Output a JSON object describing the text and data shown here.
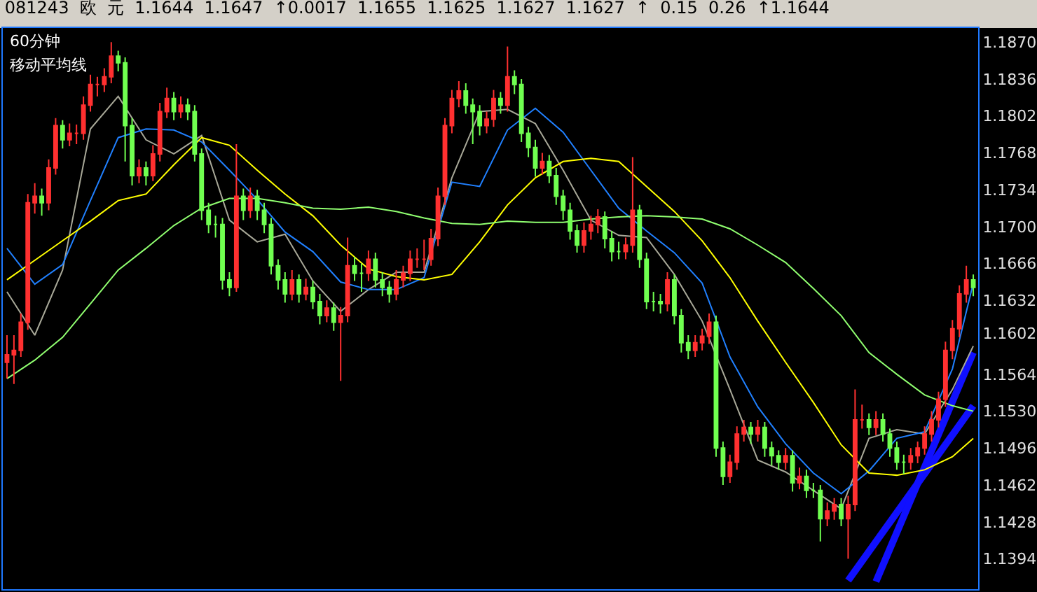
{
  "chart_data": {
    "type": "candlestick",
    "title": "081243  欧  元  1.1644  1.1647  ↑0.0017  1.1655  1.1625  1.1627  1.1627  ↑  0.15  0.26  ↑1.1644",
    "subtitle": "60分钟",
    "annotations": [
      "移动平均线"
    ],
    "categories": [
      null,
      null,
      null,
      null,
      null,
      null,
      null,
      null,
      null,
      null,
      null,
      null,
      null,
      null,
      null,
      null,
      null,
      null,
      null,
      null,
      null,
      null,
      null,
      null,
      null,
      null,
      null,
      null,
      null,
      null,
      null,
      null,
      null,
      null,
      null,
      null,
      null,
      null,
      null,
      null,
      null,
      null,
      null,
      null,
      null,
      null,
      null,
      null,
      null,
      null,
      null,
      null,
      null,
      null,
      null,
      null,
      null,
      null,
      null,
      null,
      null,
      null,
      null,
      null,
      null,
      null,
      null,
      null,
      null,
      null,
      null,
      null,
      null,
      null,
      null,
      null,
      null,
      null,
      null,
      null,
      null,
      null,
      null,
      null,
      null,
      null,
      null,
      null,
      null,
      null,
      null,
      null,
      null,
      null,
      null,
      null,
      null,
      null,
      null,
      null,
      null,
      null,
      null,
      null,
      null,
      null,
      null,
      null,
      null,
      null,
      null,
      null,
      null,
      null,
      null,
      null,
      null,
      null,
      null,
      null,
      null,
      null,
      null,
      null,
      null,
      null,
      null,
      null,
      null,
      null,
      null,
      null,
      null,
      null,
      null,
      null,
      null,
      null,
      null,
      null
    ],
    "ohlc": [
      [
        1.1575,
        1.16,
        1.156,
        1.1582
      ],
      [
        1.1582,
        1.16,
        1.1555,
        1.1586
      ],
      [
        1.1586,
        1.162,
        1.158,
        1.1612
      ],
      [
        1.1612,
        1.173,
        1.1605,
        1.1722
      ],
      [
        1.1722,
        1.174,
        1.1712,
        1.1728
      ],
      [
        1.1728,
        1.1735,
        1.171,
        1.1722
      ],
      [
        1.1722,
        1.1762,
        1.1715,
        1.1754
      ],
      [
        1.1754,
        1.18,
        1.1748,
        1.1793
      ],
      [
        1.1793,
        1.1798,
        1.1772,
        1.178
      ],
      [
        1.178,
        1.1795,
        1.1774,
        1.1786
      ],
      [
        1.1786,
        1.1794,
        1.1776,
        1.1786
      ],
      [
        1.1786,
        1.182,
        1.178,
        1.1812
      ],
      [
        1.1812,
        1.184,
        1.1806,
        1.1831
      ],
      [
        1.1831,
        1.1838,
        1.182,
        1.1831
      ],
      [
        1.1831,
        1.1846,
        1.1824,
        1.1838
      ],
      [
        1.1838,
        1.187,
        1.1832,
        1.1857
      ],
      [
        1.1857,
        1.1862,
        1.1843,
        1.1851
      ],
      [
        1.1851,
        1.1856,
        1.176,
        1.1793
      ],
      [
        1.1793,
        1.18,
        1.1738,
        1.1747
      ],
      [
        1.1747,
        1.1762,
        1.174,
        1.1754
      ],
      [
        1.1754,
        1.176,
        1.1738,
        1.1747
      ],
      [
        1.1747,
        1.1775,
        1.1742,
        1.1767
      ],
      [
        1.1767,
        1.1814,
        1.176,
        1.1806
      ],
      [
        1.1806,
        1.1828,
        1.18,
        1.1818
      ],
      [
        1.1818,
        1.1824,
        1.1798,
        1.1806
      ],
      [
        1.1806,
        1.182,
        1.18,
        1.1812
      ],
      [
        1.1812,
        1.1818,
        1.1798,
        1.1806
      ],
      [
        1.1806,
        1.1812,
        1.176,
        1.1767
      ],
      [
        1.1767,
        1.1772,
        1.1706,
        1.1715
      ],
      [
        1.1715,
        1.1722,
        1.1694,
        1.1702
      ],
      [
        1.1702,
        1.171,
        1.169,
        1.1702
      ],
      [
        1.1702,
        1.1708,
        1.1642,
        1.1651
      ],
      [
        1.1651,
        1.1658,
        1.1636,
        1.1644
      ],
      [
        1.1644,
        1.1776,
        1.164,
        1.1728
      ],
      [
        1.1728,
        1.1735,
        1.1706,
        1.1715
      ],
      [
        1.1715,
        1.1736,
        1.1708,
        1.1728
      ],
      [
        1.1728,
        1.1734,
        1.1706,
        1.1715
      ],
      [
        1.1715,
        1.1722,
        1.1694,
        1.1702
      ],
      [
        1.1702,
        1.1708,
        1.1656,
        1.1664
      ],
      [
        1.1664,
        1.167,
        1.1642,
        1.1651
      ],
      [
        1.1651,
        1.1658,
        1.163,
        1.1638
      ],
      [
        1.1638,
        1.166,
        1.1632,
        1.1651
      ],
      [
        1.1651,
        1.1656,
        1.163,
        1.1638
      ],
      [
        1.1638,
        1.1652,
        1.1632,
        1.1644
      ],
      [
        1.1644,
        1.165,
        1.1624,
        1.1631
      ],
      [
        1.1631,
        1.1638,
        1.161,
        1.1618
      ],
      [
        1.1618,
        1.1632,
        1.1612,
        1.1625
      ],
      [
        1.1625,
        1.163,
        1.1604,
        1.1612
      ],
      [
        1.1612,
        1.1626,
        1.1558,
        1.1618
      ],
      [
        1.1618,
        1.169,
        1.1612,
        1.1664
      ],
      [
        1.1664,
        1.1672,
        1.165,
        1.1657
      ],
      [
        1.1657,
        1.1666,
        1.164,
        1.1657
      ],
      [
        1.1657,
        1.1678,
        1.165,
        1.167
      ],
      [
        1.167,
        1.1676,
        1.1644,
        1.1651
      ],
      [
        1.1651,
        1.1658,
        1.1636,
        1.1644
      ],
      [
        1.1644,
        1.165,
        1.163,
        1.1638
      ],
      [
        1.1638,
        1.166,
        1.1632,
        1.1651
      ],
      [
        1.1651,
        1.1664,
        1.1644,
        1.1657
      ],
      [
        1.1657,
        1.1678,
        1.165,
        1.167
      ],
      [
        1.167,
        1.168,
        1.1662,
        1.167
      ],
      [
        1.167,
        1.1688,
        1.166,
        1.167
      ],
      [
        1.167,
        1.1698,
        1.1664,
        1.1689
      ],
      [
        1.1689,
        1.1736,
        1.1682,
        1.1728
      ],
      [
        1.1728,
        1.18,
        1.172,
        1.1793
      ],
      [
        1.1793,
        1.1826,
        1.1786,
        1.1818
      ],
      [
        1.1818,
        1.1834,
        1.181,
        1.1825
      ],
      [
        1.1825,
        1.1832,
        1.1804,
        1.1812
      ],
      [
        1.1812,
        1.1818,
        1.1776,
        1.1806
      ],
      [
        1.1806,
        1.1812,
        1.1784,
        1.1793
      ],
      [
        1.1793,
        1.1806,
        1.1786,
        1.1799
      ],
      [
        1.1799,
        1.1826,
        1.1792,
        1.1818
      ],
      [
        1.1818,
        1.1824,
        1.1804,
        1.1812
      ],
      [
        1.1812,
        1.1866,
        1.1806,
        1.1838
      ],
      [
        1.1838,
        1.1844,
        1.1822,
        1.1831
      ],
      [
        1.1831,
        1.1836,
        1.1778,
        1.1786
      ],
      [
        1.1786,
        1.1792,
        1.1764,
        1.1773
      ],
      [
        1.1773,
        1.178,
        1.1746,
        1.1754
      ],
      [
        1.1754,
        1.1768,
        1.1748,
        1.176
      ],
      [
        1.176,
        1.1766,
        1.174,
        1.1747
      ],
      [
        1.1747,
        1.1754,
        1.172,
        1.1728
      ],
      [
        1.1728,
        1.1734,
        1.1706,
        1.1715
      ],
      [
        1.1715,
        1.1722,
        1.1688,
        1.1696
      ],
      [
        1.1696,
        1.1702,
        1.1676,
        1.1683
      ],
      [
        1.1683,
        1.1704,
        1.1676,
        1.1696
      ],
      [
        1.1696,
        1.171,
        1.1688,
        1.1702
      ],
      [
        1.1702,
        1.1716,
        1.1694,
        1.1709
      ],
      [
        1.1709,
        1.1714,
        1.168,
        1.1689
      ],
      [
        1.1689,
        1.1696,
        1.1668,
        1.1677
      ],
      [
        1.1677,
        1.1686,
        1.167,
        1.1677
      ],
      [
        1.1677,
        1.169,
        1.167,
        1.1683
      ],
      [
        1.1683,
        1.1764,
        1.1676,
        1.1715
      ],
      [
        1.1715,
        1.172,
        1.1662,
        1.167
      ],
      [
        1.167,
        1.1676,
        1.1624,
        1.1631
      ],
      [
        1.1631,
        1.164,
        1.1622,
        1.1631
      ],
      [
        1.1631,
        1.1638,
        1.162,
        1.1629
      ],
      [
        1.1629,
        1.1658,
        1.1622,
        1.1651
      ],
      [
        1.1651,
        1.1656,
        1.161,
        1.1618
      ],
      [
        1.1618,
        1.1624,
        1.1584,
        1.1593
      ],
      [
        1.1593,
        1.16,
        1.1578,
        1.1586
      ],
      [
        1.1586,
        1.16,
        1.158,
        1.1593
      ],
      [
        1.1593,
        1.1606,
        1.1586,
        1.1599
      ],
      [
        1.1599,
        1.162,
        1.1592,
        1.1612
      ],
      [
        1.1612,
        1.1618,
        1.1488,
        1.1496
      ],
      [
        1.1496,
        1.1502,
        1.1462,
        1.147
      ],
      [
        1.147,
        1.149,
        1.1464,
        1.1483
      ],
      [
        1.1483,
        1.1516,
        1.1476,
        1.1509
      ],
      [
        1.1509,
        1.1522,
        1.1502,
        1.1515
      ],
      [
        1.1515,
        1.152,
        1.15,
        1.1509
      ],
      [
        1.1509,
        1.1522,
        1.1502,
        1.1515
      ],
      [
        1.1515,
        1.152,
        1.1488,
        1.1496
      ],
      [
        1.1496,
        1.1502,
        1.148,
        1.1489
      ],
      [
        1.1489,
        1.1494,
        1.1476,
        1.1483
      ],
      [
        1.1483,
        1.1496,
        1.1476,
        1.1489
      ],
      [
        1.1489,
        1.1494,
        1.1456,
        1.1464
      ],
      [
        1.1464,
        1.1478,
        1.1458,
        1.147
      ],
      [
        1.147,
        1.1476,
        1.145,
        1.1457
      ],
      [
        1.1457,
        1.1464,
        1.145,
        1.1457
      ],
      [
        1.1457,
        1.1462,
        1.141,
        1.1431
      ],
      [
        1.1431,
        1.1446,
        1.1424,
        1.1438
      ],
      [
        1.1438,
        1.145,
        1.143,
        1.1444
      ],
      [
        1.1444,
        1.145,
        1.1424,
        1.1431
      ],
      [
        1.1431,
        1.1452,
        1.1394,
        1.1444
      ],
      [
        1.1444,
        1.155,
        1.1438,
        1.1522
      ],
      [
        1.1522,
        1.1536,
        1.1514,
        1.1522
      ],
      [
        1.1522,
        1.1528,
        1.1508,
        1.1515
      ],
      [
        1.1515,
        1.153,
        1.1508,
        1.1522
      ],
      [
        1.1522,
        1.1528,
        1.1502,
        1.1509
      ],
      [
        1.1509,
        1.1514,
        1.1488,
        1.1496
      ],
      [
        1.1496,
        1.1502,
        1.1476,
        1.1483
      ],
      [
        1.1483,
        1.149,
        1.1472,
        1.1483
      ],
      [
        1.1483,
        1.1496,
        1.1476,
        1.1489
      ],
      [
        1.1489,
        1.1502,
        1.1482,
        1.1496
      ],
      [
        1.1496,
        1.1516,
        1.149,
        1.1509
      ],
      [
        1.1509,
        1.153,
        1.1502,
        1.1522
      ],
      [
        1.1522,
        1.1548,
        1.1515,
        1.1541
      ],
      [
        1.1541,
        1.1594,
        1.1534,
        1.1586
      ],
      [
        1.1586,
        1.1614,
        1.1578,
        1.1606
      ],
      [
        1.1606,
        1.1646,
        1.1598,
        1.1638
      ],
      [
        1.1638,
        1.1664,
        1.163,
        1.1651
      ],
      [
        1.1651,
        1.1656,
        1.1636,
        1.1644
      ]
    ],
    "series": [
      {
        "type": "line",
        "color": "#a8a898",
        "values": [
          1.164,
          null,
          null,
          null,
          1.16,
          null,
          null,
          null,
          1.166,
          null,
          null,
          null,
          1.179,
          null,
          null,
          null,
          1.182,
          null,
          null,
          null,
          1.178,
          null,
          null,
          null,
          1.1767,
          null,
          null,
          null,
          1.1784,
          null,
          null,
          null,
          1.1706,
          null,
          null,
          null,
          1.1686,
          null,
          null,
          null,
          1.1693,
          null,
          null,
          null,
          1.165,
          null,
          null,
          null,
          1.1622,
          null,
          null,
          null,
          1.1642,
          null,
          null,
          null,
          1.1658,
          null,
          null,
          null,
          1.1658,
          null,
          null,
          null,
          1.1745,
          null,
          null,
          null,
          1.1806,
          null,
          null,
          null,
          1.1808,
          null,
          null,
          null,
          1.1795,
          null,
          null,
          null,
          1.1752,
          null,
          null,
          null,
          1.1706,
          null,
          null,
          null,
          1.1692,
          null,
          null,
          null,
          1.169,
          null,
          null,
          null,
          1.1656,
          null,
          null,
          null,
          1.1613,
          null,
          null,
          null,
          1.155,
          null,
          null,
          null,
          1.1485,
          null,
          null,
          null,
          1.1474,
          null,
          null,
          null,
          1.1457,
          null,
          null,
          null,
          1.144,
          null,
          null,
          null,
          1.1505,
          null,
          null,
          null,
          1.1513,
          null,
          null,
          null,
          1.1509,
          null,
          null,
          null,
          1.155,
          null,
          null,
          1.159
        ]
      },
      {
        "type": "line",
        "color": "#2080ff",
        "values": [
          1.168,
          null,
          null,
          null,
          1.1647,
          null,
          null,
          null,
          1.1665,
          null,
          null,
          null,
          1.1724,
          null,
          null,
          null,
          1.1782,
          null,
          null,
          null,
          1.179,
          null,
          null,
          null,
          1.1789,
          null,
          null,
          null,
          1.1778,
          null,
          null,
          null,
          1.1752,
          null,
          null,
          null,
          1.1725,
          null,
          null,
          null,
          1.1695,
          null,
          null,
          null,
          1.1677,
          null,
          null,
          null,
          1.1649,
          null,
          null,
          null,
          1.1642,
          null,
          null,
          null,
          1.1642,
          null,
          null,
          null,
          1.1653,
          null,
          null,
          null,
          1.1741,
          null,
          null,
          null,
          1.1737,
          null,
          null,
          null,
          1.1789,
          null,
          null,
          null,
          1.1809,
          null,
          null,
          null,
          1.1787,
          null,
          null,
          null,
          1.1752,
          null,
          null,
          null,
          1.1717,
          null,
          null,
          null,
          1.1696,
          null,
          null,
          null,
          1.1676,
          null,
          null,
          null,
          1.1648,
          null,
          null,
          null,
          1.158,
          null,
          null,
          null,
          1.1534,
          null,
          null,
          null,
          1.15,
          null,
          null,
          null,
          1.1473,
          null,
          null,
          null,
          1.1454,
          null,
          null,
          null,
          1.1475,
          null,
          null,
          null,
          1.1505,
          null,
          null,
          null,
          1.1511,
          null,
          null,
          null,
          1.1569,
          null,
          null,
          1.1648
        ]
      },
      {
        "type": "line",
        "color": "#ffff00",
        "values": [
          1.1651,
          null,
          null,
          null,
          1.1669,
          null,
          null,
          null,
          1.1687,
          null,
          null,
          null,
          1.1705,
          null,
          null,
          null,
          1.1724,
          null,
          null,
          null,
          1.173,
          null,
          null,
          null,
          1.1757,
          null,
          null,
          null,
          1.1782,
          null,
          null,
          null,
          1.1775,
          null,
          null,
          null,
          1.1752,
          null,
          null,
          null,
          1.173,
          null,
          null,
          null,
          1.171,
          null,
          null,
          null,
          1.1683,
          null,
          null,
          null,
          1.1661,
          null,
          null,
          null,
          1.1654,
          null,
          null,
          null,
          1.1651,
          null,
          null,
          null,
          1.1656,
          null,
          null,
          null,
          1.1686,
          null,
          null,
          null,
          1.172,
          null,
          null,
          null,
          1.1745,
          null,
          null,
          null,
          1.176,
          null,
          null,
          null,
          1.1763,
          null,
          null,
          null,
          1.176,
          null,
          null,
          null,
          1.1737,
          null,
          null,
          null,
          1.1714,
          null,
          null,
          null,
          1.1687,
          null,
          null,
          null,
          1.1653,
          null,
          null,
          null,
          1.1613,
          null,
          null,
          null,
          1.1575,
          null,
          null,
          null,
          1.1538,
          null,
          null,
          null,
          1.1499,
          null,
          null,
          null,
          1.1473,
          null,
          null,
          null,
          1.1471,
          null,
          null,
          null,
          1.1476,
          null,
          null,
          null,
          1.1488,
          null,
          null,
          1.1505
        ]
      },
      {
        "type": "line",
        "color": "#90ff70",
        "values": [
          1.156,
          null,
          null,
          null,
          1.1577,
          null,
          null,
          null,
          1.1598,
          null,
          null,
          null,
          1.1629,
          null,
          null,
          null,
          1.166,
          null,
          null,
          null,
          1.168,
          null,
          null,
          null,
          1.1701,
          null,
          null,
          null,
          1.1717,
          null,
          null,
          null,
          1.1726,
          null,
          null,
          null,
          1.1726,
          null,
          null,
          null,
          1.1722,
          null,
          null,
          null,
          1.1717,
          null,
          null,
          null,
          1.1716,
          null,
          null,
          null,
          1.1718,
          null,
          null,
          null,
          1.1714,
          null,
          null,
          null,
          1.1708,
          null,
          null,
          null,
          1.1703,
          null,
          null,
          null,
          1.1702,
          null,
          null,
          null,
          1.1705,
          null,
          null,
          null,
          1.1704,
          null,
          null,
          null,
          1.1704,
          null,
          null,
          null,
          1.1707,
          null,
          null,
          null,
          1.1709,
          null,
          null,
          null,
          1.171,
          null,
          null,
          null,
          1.1709,
          null,
          null,
          null,
          1.1707,
          null,
          null,
          null,
          1.1698,
          null,
          null,
          null,
          1.1683,
          null,
          null,
          null,
          1.1667,
          null,
          null,
          null,
          1.1643,
          null,
          null,
          null,
          1.1618,
          null,
          null,
          null,
          1.1584,
          null,
          null,
          null,
          1.1564,
          null,
          null,
          null,
          1.1545,
          null,
          null,
          null,
          1.1535,
          null,
          null,
          1.153
        ]
      },
      {
        "type": "line",
        "color": "#1010ff",
        "values": [
          null,
          null,
          null,
          null,
          null,
          null,
          null,
          null,
          null,
          null,
          null,
          null,
          null,
          null,
          null,
          null,
          null,
          null,
          null,
          null,
          null,
          null,
          null,
          null,
          null,
          null,
          null,
          null,
          null,
          null,
          null,
          null,
          null,
          null,
          null,
          null,
          null,
          null,
          null,
          null,
          null,
          null,
          null,
          null,
          null,
          null,
          null,
          null,
          null,
          null,
          null,
          null,
          null,
          null,
          null,
          null,
          null,
          null,
          null,
          null,
          null,
          null,
          null,
          null,
          null,
          null,
          null,
          null,
          null,
          null,
          null,
          null,
          null,
          null,
          null,
          null,
          null,
          null,
          null,
          null,
          null,
          null,
          null,
          null,
          null,
          null,
          null,
          null,
          null,
          null,
          null,
          null,
          null,
          null,
          null,
          null,
          null,
          null,
          null,
          null,
          null,
          null,
          null,
          null,
          null,
          null,
          null,
          null,
          null,
          null,
          null,
          null,
          null,
          null,
          null,
          null,
          null,
          null,
          null,
          null,
          null,
          1.1374,
          null,
          null,
          null,
          null,
          null,
          null,
          null,
          null,
          null,
          null,
          null,
          null,
          null,
          null,
          null,
          null,
          null,
          1.1535
        ]
      },
      {
        "type": "line",
        "color": "#1010ff",
        "values": [
          null,
          null,
          null,
          null,
          null,
          null,
          null,
          null,
          null,
          null,
          null,
          null,
          null,
          null,
          null,
          null,
          null,
          null,
          null,
          null,
          null,
          null,
          null,
          null,
          null,
          null,
          null,
          null,
          null,
          null,
          null,
          null,
          null,
          null,
          null,
          null,
          null,
          null,
          null,
          null,
          null,
          null,
          null,
          null,
          null,
          null,
          null,
          null,
          null,
          null,
          null,
          null,
          null,
          null,
          null,
          null,
          null,
          null,
          null,
          null,
          null,
          null,
          null,
          null,
          null,
          null,
          null,
          null,
          null,
          null,
          null,
          null,
          null,
          null,
          null,
          null,
          null,
          null,
          null,
          null,
          null,
          null,
          null,
          null,
          null,
          null,
          null,
          null,
          null,
          null,
          null,
          null,
          null,
          null,
          null,
          null,
          null,
          null,
          null,
          null,
          null,
          null,
          null,
          null,
          null,
          null,
          null,
          null,
          null,
          null,
          null,
          null,
          null,
          null,
          null,
          null,
          null,
          null,
          null,
          null,
          null,
          null,
          null,
          null,
          null,
          1.1373,
          null,
          null,
          null,
          null,
          null,
          null,
          null,
          null,
          null,
          null,
          null,
          null,
          null,
          1.1584
        ]
      }
    ],
    "ylim": [
      1.1366,
      1.1883
    ],
    "yticks": [
      {
        "value": 1.187,
        "label": "1.1870"
      },
      1.1836,
      1.1802,
      1.1768,
      1.1734,
      {
        "value": 1.17,
        "label": "1.1700"
      },
      1.1666,
      1.1632,
      {
        "value": 1.1602,
        "label": "1.1602"
      },
      1.1564,
      {
        "value": 1.153,
        "label": "1.1530"
      },
      1.1496,
      1.1462,
      1.1428,
      1.1394
    ],
    "tick_labels": "y"
  }
}
